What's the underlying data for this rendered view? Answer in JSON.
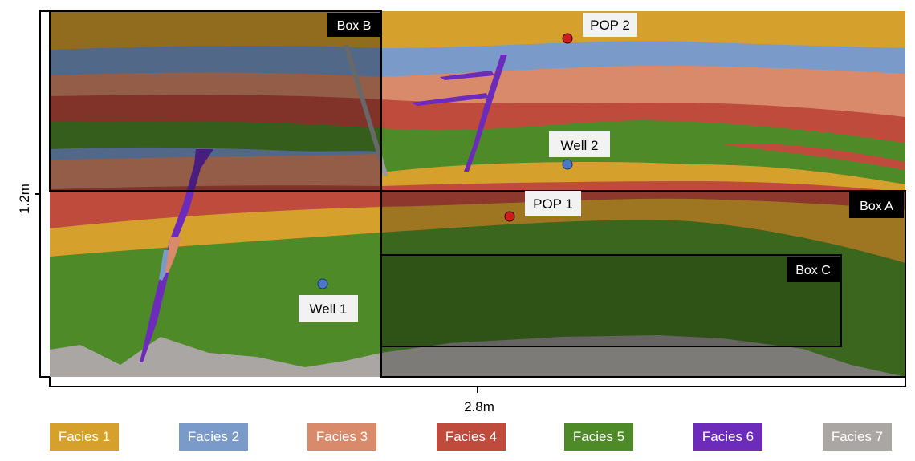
{
  "scale": {
    "height_label": "1.2m",
    "width_label": "2.8m"
  },
  "boxes": {
    "box_a": "Box A",
    "box_b": "Box B",
    "box_c": "Box C"
  },
  "points": {
    "pop1": "POP 1",
    "pop2": "POP 2",
    "well1": "Well 1",
    "well2": "Well 2"
  },
  "legend": [
    {
      "label": "Facies 1",
      "color": "#d6a02d"
    },
    {
      "label": "Facies 2",
      "color": "#7a9ac9"
    },
    {
      "label": "Facies 3",
      "color": "#d98a6b"
    },
    {
      "label": "Facies 4",
      "color": "#bf4b3d"
    },
    {
      "label": "Facies 5",
      "color": "#4f8a28"
    },
    {
      "label": "Facies 6",
      "color": "#6c2bbb"
    },
    {
      "label": "Facies 7",
      "color": "#a9a6a3"
    }
  ]
}
